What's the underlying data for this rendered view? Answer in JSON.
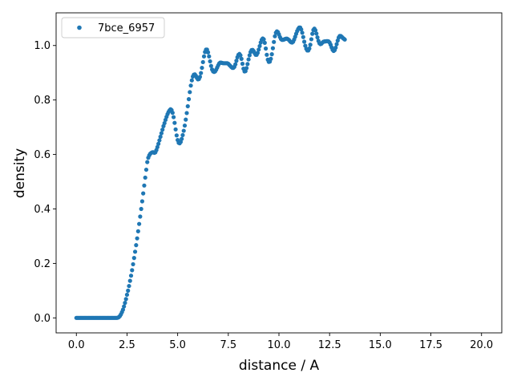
{
  "chart_data": {
    "type": "scatter",
    "xlabel": "distance / A",
    "ylabel": "density",
    "xlim": [
      -1.0,
      21.0
    ],
    "ylim": [
      -0.055,
      1.12
    ],
    "xticks": [
      0.0,
      2.5,
      5.0,
      7.5,
      10.0,
      12.5,
      15.0,
      17.5,
      20.0
    ],
    "xtick_labels": [
      "0.0",
      "2.5",
      "5.0",
      "7.5",
      "10.0",
      "12.5",
      "15.0",
      "17.5",
      "20.0"
    ],
    "yticks": [
      0.0,
      0.2,
      0.4,
      0.6,
      0.8,
      1.0
    ],
    "ytick_labels": [
      "0.0",
      "0.2",
      "0.4",
      "0.6",
      "0.8",
      "1.0"
    ],
    "grid": false,
    "legend_position": "top-left",
    "series": [
      {
        "name": "7bce_6957",
        "color": "#1f77b4",
        "marker": "circle",
        "x_start": 0.0,
        "x_step": 0.05,
        "y": [
          0.0,
          0.0,
          0.0,
          0.0,
          0.0,
          0.0,
          0.0,
          0.0,
          0.0,
          0.0,
          0.0,
          0.0,
          0.0,
          0.0,
          0.0,
          0.0,
          0.0,
          0.0,
          0.0,
          0.0,
          0.0,
          0.0,
          0.0,
          0.0,
          0.0,
          0.0,
          0.0,
          0.0,
          0.0,
          0.0,
          0.0,
          0.0,
          0.0,
          0.0,
          0.0,
          0.0,
          0.0,
          0.0,
          0.0,
          0.0,
          0.0,
          0.001,
          0.003,
          0.007,
          0.013,
          0.021,
          0.03,
          0.042,
          0.055,
          0.069,
          0.085,
          0.1,
          0.117,
          0.136,
          0.155,
          0.175,
          0.197,
          0.22,
          0.243,
          0.267,
          0.292,
          0.318,
          0.345,
          0.372,
          0.4,
          0.428,
          0.457,
          0.486,
          0.515,
          0.544,
          0.572,
          0.588,
          0.597,
          0.603,
          0.606,
          0.608,
          0.608,
          0.606,
          0.608,
          0.616,
          0.627,
          0.639,
          0.652,
          0.665,
          0.678,
          0.691,
          0.704,
          0.715,
          0.727,
          0.738,
          0.748,
          0.756,
          0.762,
          0.766,
          0.763,
          0.753,
          0.737,
          0.716,
          0.692,
          0.67,
          0.653,
          0.643,
          0.641,
          0.646,
          0.657,
          0.671,
          0.687,
          0.706,
          0.728,
          0.752,
          0.777,
          0.803,
          0.829,
          0.853,
          0.872,
          0.886,
          0.893,
          0.894,
          0.889,
          0.881,
          0.876,
          0.877,
          0.885,
          0.899,
          0.918,
          0.939,
          0.96,
          0.976,
          0.985,
          0.985,
          0.975,
          0.96,
          0.942,
          0.925,
          0.912,
          0.905,
          0.903,
          0.905,
          0.911,
          0.919,
          0.927,
          0.934,
          0.937,
          0.937,
          0.936,
          0.935,
          0.935,
          0.935,
          0.935,
          0.935,
          0.933,
          0.929,
          0.925,
          0.921,
          0.918,
          0.918,
          0.922,
          0.931,
          0.944,
          0.957,
          0.966,
          0.969,
          0.964,
          0.951,
          0.933,
          0.915,
          0.905,
          0.906,
          0.917,
          0.932,
          0.949,
          0.964,
          0.976,
          0.983,
          0.984,
          0.98,
          0.972,
          0.966,
          0.966,
          0.973,
          0.985,
          0.998,
          1.011,
          1.021,
          1.026,
          1.023,
          1.01,
          0.989,
          0.966,
          0.948,
          0.94,
          0.941,
          0.951,
          0.968,
          0.99,
          1.013,
          1.034,
          1.047,
          1.052,
          1.049,
          1.041,
          1.031,
          1.024,
          1.021,
          1.021,
          1.022,
          1.024,
          1.025,
          1.025,
          1.023,
          1.02,
          1.015,
          1.012,
          1.011,
          1.014,
          1.022,
          1.032,
          1.043,
          1.053,
          1.061,
          1.066,
          1.066,
          1.059,
          1.047,
          1.031,
          1.014,
          0.999,
          0.988,
          0.982,
          0.982,
          0.989,
          1.003,
          1.023,
          1.043,
          1.057,
          1.062,
          1.056,
          1.044,
          1.03,
          1.017,
          1.008,
          1.005,
          1.007,
          1.011,
          1.014,
          1.015,
          1.015,
          1.016,
          1.016,
          1.015,
          1.011,
          1.003,
          0.993,
          0.984,
          0.98,
          0.983,
          0.992,
          1.005,
          1.018,
          1.029,
          1.035,
          1.035,
          1.032,
          1.028,
          1.025,
          1.022
        ]
      }
    ]
  }
}
